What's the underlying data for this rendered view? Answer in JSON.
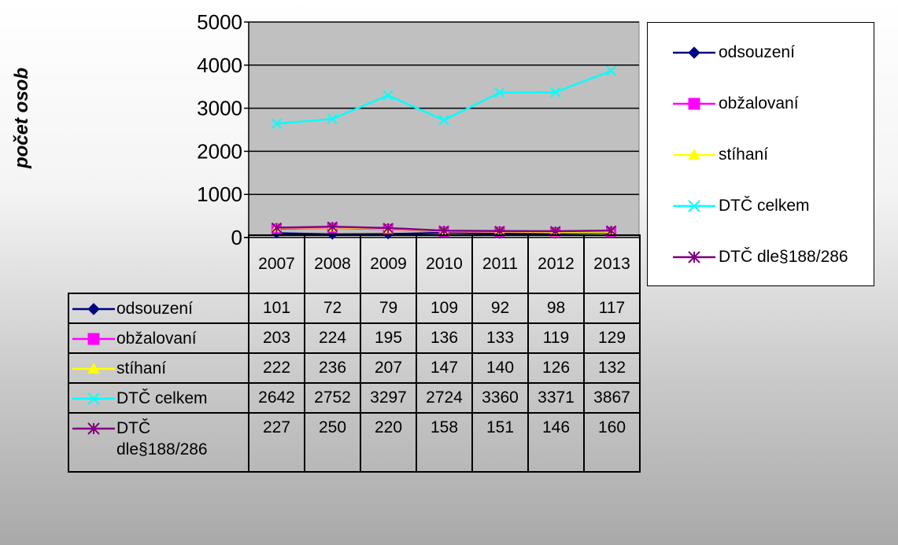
{
  "chart_data": {
    "type": "line",
    "title": "",
    "ylabel": "počet osob",
    "xlabel": "",
    "ylim": [
      0,
      5000
    ],
    "yticks": [
      0,
      1000,
      2000,
      3000,
      4000,
      5000
    ],
    "grid": "horizontal",
    "legend_position": "right",
    "categories": [
      "2007",
      "2008",
      "2009",
      "2010",
      "2011",
      "2012",
      "2013"
    ],
    "series": [
      {
        "name": "odsouzení",
        "values": [
          101,
          72,
          79,
          109,
          92,
          98,
          117
        ],
        "color": "#000080",
        "marker": "diamond"
      },
      {
        "name": "obžalovaní",
        "values": [
          203,
          224,
          195,
          136,
          133,
          119,
          129
        ],
        "color": "#ff00ff",
        "marker": "square"
      },
      {
        "name": "stíhaní",
        "values": [
          222,
          236,
          207,
          147,
          140,
          126,
          132
        ],
        "color": "#ffff00",
        "marker": "triangle"
      },
      {
        "name": "DTČ celkem",
        "values": [
          2642,
          2752,
          3297,
          2724,
          3360,
          3371,
          3867
        ],
        "color": "#00ffff",
        "marker": "x"
      },
      {
        "name": "DTČ dle§188/286",
        "values": [
          227,
          250,
          220,
          158,
          151,
          146,
          160
        ],
        "color": "#800080",
        "marker": "star"
      }
    ],
    "colors": {
      "plot_area": "#c0c0c0",
      "gridline": "#000000"
    }
  }
}
